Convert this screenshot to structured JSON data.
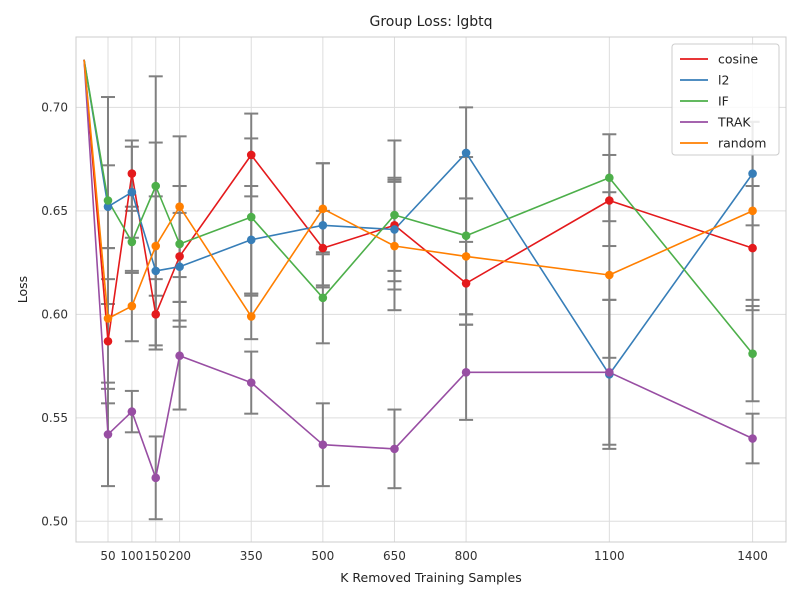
{
  "chart_data": {
    "type": "line",
    "title": "Group Loss: lgbtq",
    "xlabel": "K Removed Training Samples",
    "ylabel": "Loss",
    "x_ticks": [
      50,
      100,
      150,
      200,
      350,
      500,
      650,
      800,
      1100,
      1400
    ],
    "x_tick_labels": [
      "50",
      "100",
      "150",
      "200",
      "350",
      "500",
      "650",
      "800",
      "1100",
      "1400"
    ],
    "xlim": [
      -17,
      1470
    ],
    "ylim": [
      0.49,
      0.734
    ],
    "y_ticks": [
      0.5,
      0.55,
      0.6,
      0.65,
      0.7
    ],
    "y_tick_labels": [
      "0.50",
      "0.55",
      "0.60",
      "0.65",
      "0.70"
    ],
    "grid": true,
    "legend_position": "top-right",
    "error_bar_color": "#808080",
    "x": [
      0,
      50,
      100,
      150,
      200,
      350,
      500,
      650,
      800,
      1100,
      1400
    ],
    "series": [
      {
        "name": "cosine",
        "color": "#e41a1c",
        "values": [
          0.723,
          0.587,
          0.668,
          0.6,
          0.628,
          0.677,
          0.632,
          0.643,
          0.615,
          0.655,
          0.632
        ],
        "err": [
          0,
          0.03,
          0.016,
          0.017,
          0.034,
          0.02,
          0.018,
          0.022,
          0.02,
          0.022,
          0.03
        ]
      },
      {
        "name": "l2",
        "color": "#377eb8",
        "values": [
          0.723,
          0.652,
          0.659,
          0.621,
          0.623,
          0.636,
          0.643,
          0.641,
          0.678,
          0.571,
          0.668
        ],
        "err": [
          0,
          0.02,
          0.022,
          0.036,
          0.026,
          0.026,
          0.03,
          0.025,
          0.022,
          0.036,
          0.025
        ]
      },
      {
        "name": "IF",
        "color": "#4daf4a",
        "values": [
          0.723,
          0.655,
          0.635,
          0.662,
          0.634,
          0.647,
          0.608,
          0.648,
          0.638,
          0.666,
          0.581
        ],
        "err": [
          0,
          0.05,
          0.015,
          0.053,
          0.028,
          0.038,
          0.022,
          0.036,
          0.038,
          0.021,
          0.023
        ]
      },
      {
        "name": "TRAK",
        "color": "#984ea3",
        "values": [
          0.723,
          0.542,
          0.553,
          0.521,
          0.58,
          0.567,
          0.537,
          0.535,
          0.572,
          0.572,
          0.54
        ],
        "err": [
          0,
          0.025,
          0.01,
          0.02,
          0.026,
          0.015,
          0.02,
          0.019,
          0.023,
          0.035,
          0.012
        ]
      },
      {
        "name": "random",
        "color": "#ff7f00",
        "values": [
          0.723,
          0.598,
          0.604,
          0.633,
          0.652,
          0.599,
          0.651,
          0.633,
          0.628,
          0.619,
          0.65
        ],
        "err": [
          0,
          0.034,
          0.017,
          0.05,
          0.034,
          0.011,
          0.022,
          0.031,
          0.028,
          0.04,
          0.043
        ]
      }
    ]
  }
}
